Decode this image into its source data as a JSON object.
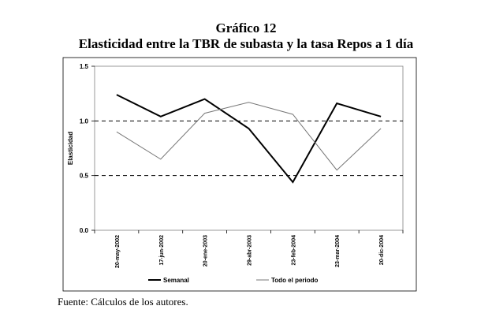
{
  "chart_data": {
    "type": "line",
    "title": "Gráfico 12",
    "subtitle": "Elasticidad entre la TBR de subasta y la tasa Repos a 1 día",
    "xlabel": "",
    "ylabel": "Elasticidad",
    "categories": [
      "20-may-2002",
      "17-jun-2002",
      "20-ene-2003",
      "29-abr-2003",
      "23-feb-2004",
      "23-mar-2004",
      "20-dic-2004"
    ],
    "ylim": [
      0,
      1.5
    ],
    "yticks": [
      "0.0",
      "0.5",
      "1.0",
      "1.5"
    ],
    "reference_lines": [
      0.5,
      1.0
    ],
    "series": [
      {
        "name": "Semanal",
        "values": [
          1.24,
          1.04,
          1.2,
          0.93,
          0.44,
          1.16,
          1.04
        ],
        "color": "#000000"
      },
      {
        "name": "Todo el periodo",
        "values": [
          0.9,
          0.65,
          1.07,
          1.17,
          1.06,
          0.55,
          0.93
        ],
        "color": "#777777"
      }
    ],
    "grid": false,
    "legend_position": "bottom"
  },
  "footer": {
    "source": "Fuente: Cálculos de los autores."
  }
}
